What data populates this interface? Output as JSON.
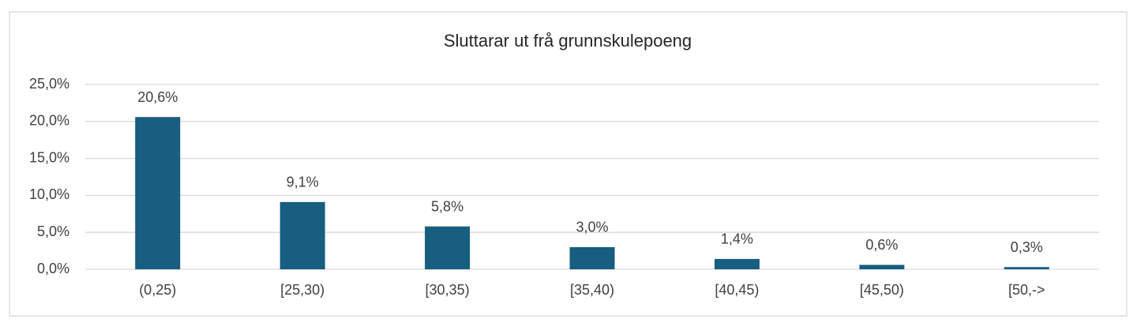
{
  "chart_data": {
    "type": "bar",
    "title": "Sluttarar ut frå grunnskulepoeng",
    "categories": [
      "(0,25)",
      "[25,30)",
      "[30,35)",
      "[35,40)",
      "[40,45)",
      "[45,50)",
      "[50,->"
    ],
    "values": [
      20.6,
      9.1,
      5.8,
      3.0,
      1.4,
      0.6,
      0.3
    ],
    "value_labels": [
      "20,6%",
      "9,1%",
      "5,8%",
      "3,0%",
      "1,4%",
      "0,6%",
      "0,3%"
    ],
    "color": "#175e80",
    "ylim": [
      0,
      25
    ],
    "yticks": [
      {
        "value": 0,
        "label": "0,0%"
      },
      {
        "value": 5,
        "label": "5,0%"
      },
      {
        "value": 10,
        "label": "10,0%"
      },
      {
        "value": 15,
        "label": "15,0%"
      },
      {
        "value": 20,
        "label": "20,0%"
      },
      {
        "value": 25,
        "label": "25,0%"
      }
    ],
    "grid": true
  }
}
